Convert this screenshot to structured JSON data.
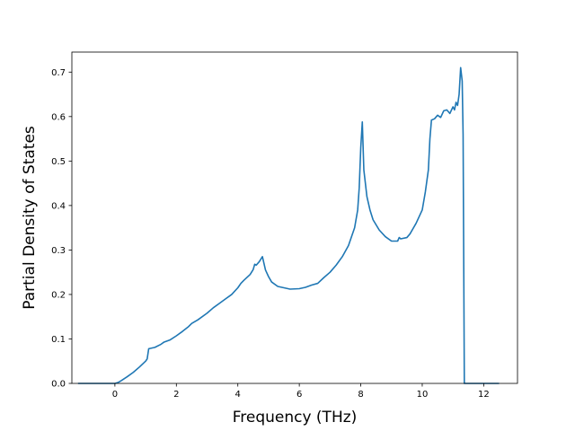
{
  "chart_data": {
    "type": "line",
    "title": "",
    "xlabel": "Frequency (THz)",
    "ylabel": "Partial Density of States",
    "xlim": [
      -1.4,
      13.1
    ],
    "ylim": [
      0.0,
      0.745
    ],
    "grid": false,
    "legend": "none",
    "xticks": [
      0,
      2,
      4,
      6,
      8,
      10,
      12
    ],
    "yticks": [
      0.0,
      0.1,
      0.2,
      0.3,
      0.4,
      0.5,
      0.6,
      0.7
    ],
    "xtick_labels": [
      "0",
      "2",
      "4",
      "6",
      "8",
      "10",
      "12"
    ],
    "ytick_labels": [
      "0.0",
      "0.1",
      "0.2",
      "0.3",
      "0.4",
      "0.5",
      "0.6",
      "0.7"
    ],
    "line_color": "#1f77b4",
    "series": [
      {
        "values": [
          [
            -1.2,
            0.0
          ],
          [
            -0.6,
            0.0
          ],
          [
            0.0,
            0.0
          ],
          [
            0.1,
            0.002
          ],
          [
            0.2,
            0.006
          ],
          [
            0.4,
            0.015
          ],
          [
            0.6,
            0.025
          ],
          [
            0.8,
            0.037
          ],
          [
            1.0,
            0.05
          ],
          [
            1.05,
            0.055
          ],
          [
            1.1,
            0.078
          ],
          [
            1.3,
            0.081
          ],
          [
            1.5,
            0.088
          ],
          [
            1.6,
            0.093
          ],
          [
            1.8,
            0.098
          ],
          [
            2.0,
            0.107
          ],
          [
            2.2,
            0.117
          ],
          [
            2.4,
            0.128
          ],
          [
            2.5,
            0.135
          ],
          [
            2.7,
            0.143
          ],
          [
            3.0,
            0.158
          ],
          [
            3.2,
            0.17
          ],
          [
            3.4,
            0.18
          ],
          [
            3.6,
            0.19
          ],
          [
            3.8,
            0.2
          ],
          [
            4.0,
            0.215
          ],
          [
            4.1,
            0.225
          ],
          [
            4.2,
            0.232
          ],
          [
            4.4,
            0.245
          ],
          [
            4.5,
            0.256
          ],
          [
            4.55,
            0.268
          ],
          [
            4.6,
            0.266
          ],
          [
            4.7,
            0.274
          ],
          [
            4.8,
            0.285
          ],
          [
            4.9,
            0.255
          ],
          [
            5.0,
            0.24
          ],
          [
            5.1,
            0.228
          ],
          [
            5.3,
            0.218
          ],
          [
            5.5,
            0.215
          ],
          [
            5.7,
            0.212
          ],
          [
            6.0,
            0.213
          ],
          [
            6.2,
            0.216
          ],
          [
            6.4,
            0.221
          ],
          [
            6.6,
            0.225
          ],
          [
            6.8,
            0.238
          ],
          [
            7.0,
            0.25
          ],
          [
            7.2,
            0.266
          ],
          [
            7.4,
            0.285
          ],
          [
            7.6,
            0.31
          ],
          [
            7.8,
            0.35
          ],
          [
            7.9,
            0.39
          ],
          [
            7.95,
            0.44
          ],
          [
            8.0,
            0.53
          ],
          [
            8.05,
            0.588
          ],
          [
            8.1,
            0.48
          ],
          [
            8.2,
            0.42
          ],
          [
            8.3,
            0.39
          ],
          [
            8.4,
            0.368
          ],
          [
            8.6,
            0.345
          ],
          [
            8.8,
            0.33
          ],
          [
            9.0,
            0.32
          ],
          [
            9.2,
            0.32
          ],
          [
            9.25,
            0.328
          ],
          [
            9.3,
            0.325
          ],
          [
            9.5,
            0.328
          ],
          [
            9.6,
            0.336
          ],
          [
            9.8,
            0.36
          ],
          [
            10.0,
            0.39
          ],
          [
            10.1,
            0.43
          ],
          [
            10.2,
            0.48
          ],
          [
            10.25,
            0.55
          ],
          [
            10.3,
            0.592
          ],
          [
            10.4,
            0.595
          ],
          [
            10.5,
            0.603
          ],
          [
            10.6,
            0.598
          ],
          [
            10.7,
            0.613
          ],
          [
            10.8,
            0.615
          ],
          [
            10.9,
            0.607
          ],
          [
            11.0,
            0.622
          ],
          [
            11.05,
            0.615
          ],
          [
            11.1,
            0.632
          ],
          [
            11.15,
            0.625
          ],
          [
            11.2,
            0.65
          ],
          [
            11.25,
            0.71
          ],
          [
            11.3,
            0.68
          ],
          [
            11.33,
            0.56
          ],
          [
            11.37,
            0.0
          ],
          [
            11.5,
            0.0
          ],
          [
            12.0,
            0.0
          ],
          [
            12.5,
            0.0
          ]
        ]
      }
    ]
  }
}
